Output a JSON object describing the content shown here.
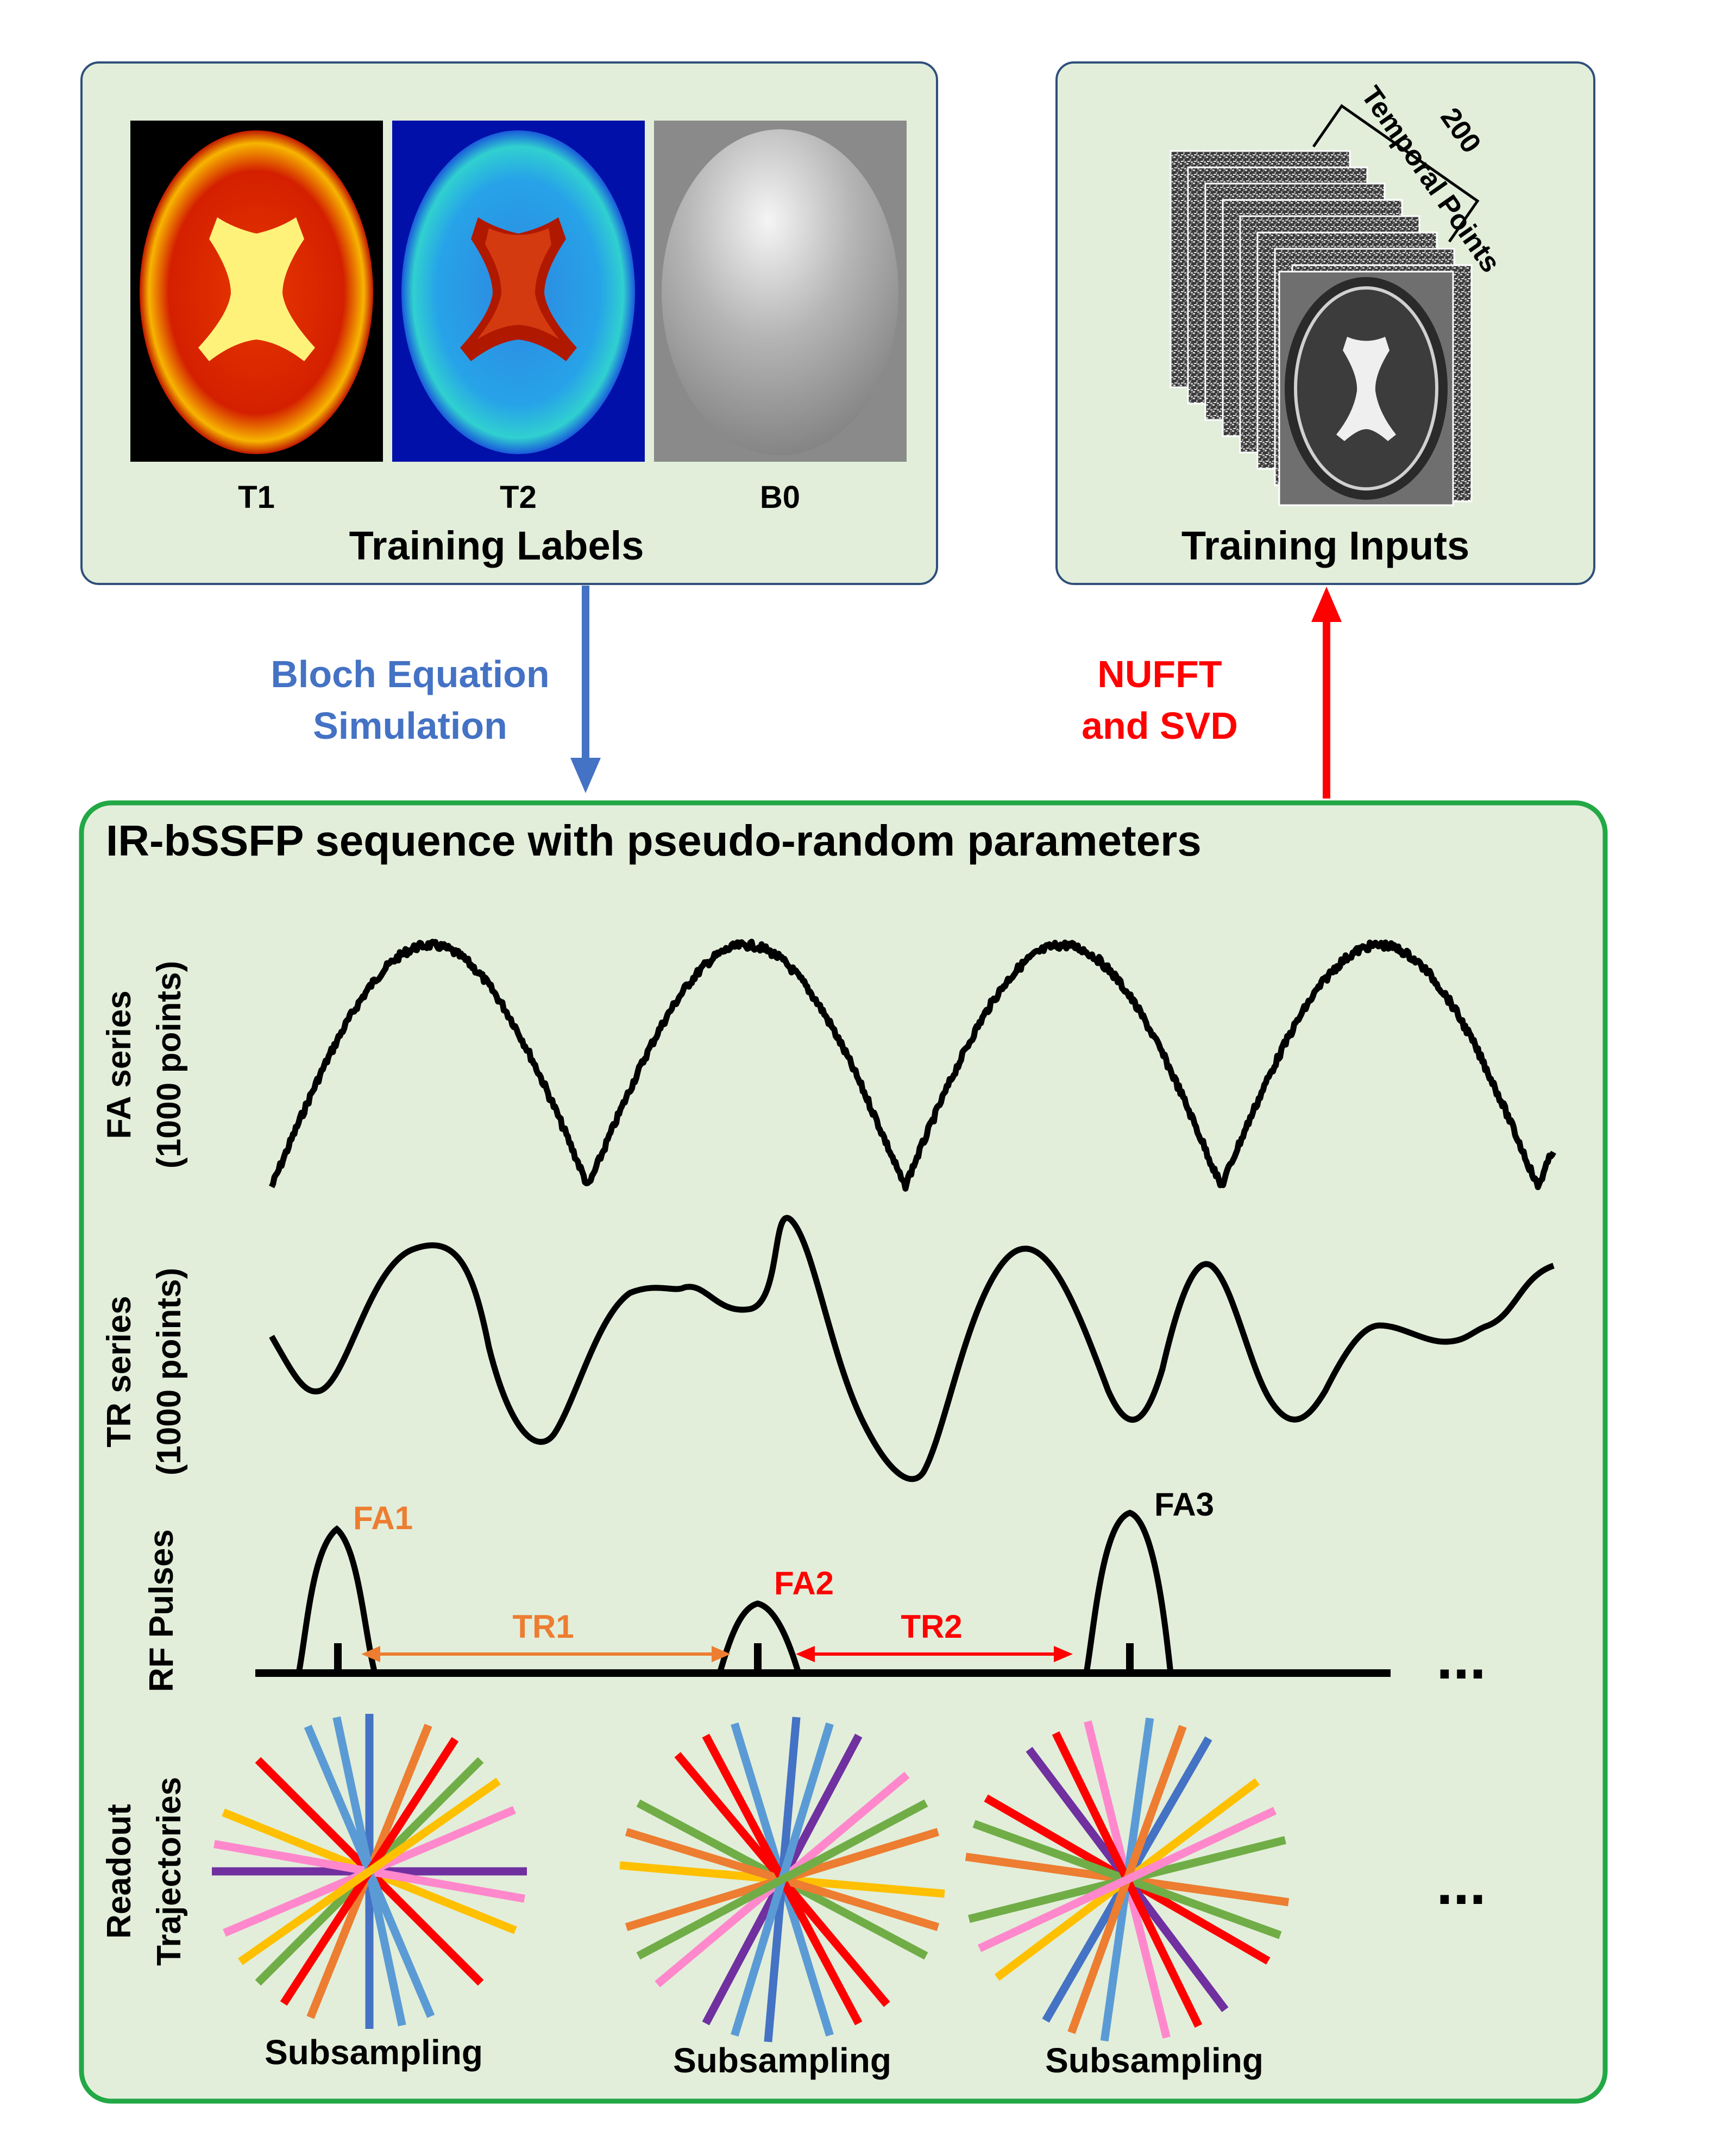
{
  "training_labels": {
    "title": "Training Labels",
    "maps": [
      {
        "label": "T1",
        "icon": "t1-brain-map"
      },
      {
        "label": "T2",
        "icon": "t2-brain-map"
      },
      {
        "label": "B0",
        "icon": "b0-field-map"
      }
    ]
  },
  "training_inputs": {
    "title": "Training Inputs",
    "stack_count": "200",
    "stack_caption": "Temporal Points",
    "icon": "mri-image-stack"
  },
  "arrows": {
    "bloch": {
      "line1": "Bloch Equation",
      "line2": "Simulation",
      "color": "#4472C4"
    },
    "nufft": {
      "line1": "NUFFT",
      "line2": "and SVD",
      "color": "#FF0000"
    }
  },
  "sequence": {
    "title": "IR-bSSFP sequence with pseudo-random parameters",
    "fa_series": {
      "line1": "FA series",
      "line2": "(1000 points)"
    },
    "tr_series": {
      "line1": "TR series",
      "line2": "(1000 points)"
    },
    "rf": {
      "label": "RF Pulses",
      "fa1": "FA1",
      "fa2": "FA2",
      "fa3": "FA3",
      "tr1": "TR1",
      "tr2": "TR2",
      "ellipsis": "...",
      "colors": {
        "orange": "#ED7D31",
        "red": "#FF0000",
        "black": "#000000"
      }
    },
    "readout": {
      "line1": "Readout",
      "line2": "Trajectories",
      "caption": "Subsampling",
      "ellipsis": "...",
      "spoke_colors": [
        "#FF0000",
        "#5B9BD5",
        "#ED7D31",
        "#7030A0",
        "#70AD47",
        "#FF88CC",
        "#FFC000",
        "#4472C4"
      ]
    }
  },
  "colors": {
    "panel_fill": "#E2EEDA",
    "panel_border": "#2F4F7A",
    "main_border": "#22A845"
  }
}
